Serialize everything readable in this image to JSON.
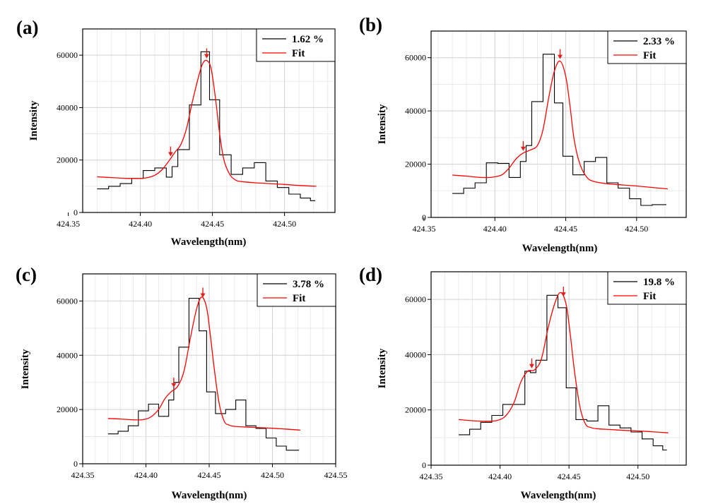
{
  "colors": {
    "data": "#000000",
    "fit": "#ff0000",
    "arrow": "#e0201a",
    "grid": "#d4d4d4",
    "frame": "#000000"
  },
  "chart_data": [
    {
      "panel": "(a)",
      "type": "line",
      "xlabel": "Wavelength(nm)",
      "ylabel": "Intensity",
      "xlim": [
        424.36,
        424.535
      ],
      "ylim": [
        0,
        70000
      ],
      "xticks": [
        "424.35",
        "424.40",
        "424.45",
        "424.50"
      ],
      "yticks": [
        "0",
        "20000",
        "40000",
        "60000"
      ],
      "grid": true,
      "legend_position": "top-right",
      "series": [
        {
          "name": "1.62 %",
          "style": "step",
          "x": [
            424.37,
            424.378,
            424.386,
            424.394,
            424.402,
            424.41,
            424.418,
            424.422,
            424.426,
            424.434,
            424.442,
            424.448,
            424.455,
            424.463,
            424.471,
            424.479,
            424.487,
            424.495,
            424.503,
            424.511,
            424.518,
            424.521
          ],
          "y": [
            9000,
            10000,
            11000,
            13000,
            16000,
            17000,
            13500,
            17500,
            24000,
            41000,
            61300,
            43000,
            22000,
            14500,
            17000,
            19000,
            12000,
            9500,
            7000,
            5500,
            4500,
            4300
          ]
        },
        {
          "name": "Fit",
          "style": "smooth",
          "x": [
            424.37,
            424.38,
            424.39,
            424.4,
            424.405,
            424.41,
            424.415,
            424.42,
            424.424,
            424.428,
            424.432,
            424.436,
            424.44,
            424.443,
            424.446,
            424.449,
            424.452,
            424.455,
            424.458,
            424.462,
            424.466,
            424.47,
            424.48,
            424.49,
            424.5,
            424.51,
            424.522
          ],
          "y": [
            13600,
            13300,
            13000,
            13000,
            13300,
            14200,
            16300,
            19800,
            23000,
            25800,
            32000,
            42000,
            51000,
            56500,
            58000,
            55000,
            44000,
            30000,
            20000,
            14500,
            12400,
            11800,
            11300,
            11000,
            10700,
            10300,
            10000
          ]
        }
      ],
      "arrows_x": [
        424.421,
        424.446
      ]
    },
    {
      "panel": "(b)",
      "type": "line",
      "xlabel": "Wavelength(nm)",
      "ylabel": "Intensity",
      "xlim": [
        424.355,
        424.535
      ],
      "ylim": [
        0,
        70000
      ],
      "xticks": [
        "424.35",
        "424.40",
        "424.45",
        "424.50"
      ],
      "yticks": [
        "0",
        "20000",
        "40000",
        "60000"
      ],
      "grid": true,
      "legend_position": "top-right",
      "series": [
        {
          "name": "2.33 %",
          "style": "step",
          "x": [
            424.37,
            424.378,
            424.386,
            424.394,
            424.402,
            424.41,
            424.418,
            424.422,
            424.426,
            424.434,
            424.442,
            424.448,
            424.455,
            424.463,
            424.471,
            424.479,
            424.487,
            424.495,
            424.503,
            424.511,
            424.518,
            424.521
          ],
          "y": [
            9000,
            11000,
            13000,
            20500,
            20300,
            15000,
            21000,
            27000,
            43500,
            61300,
            43000,
            23000,
            16000,
            21000,
            22500,
            13000,
            11000,
            7000,
            4500,
            4800,
            4800,
            4800
          ]
        },
        {
          "name": "Fit",
          "style": "smooth",
          "x": [
            424.37,
            424.38,
            424.39,
            424.398,
            424.405,
            424.41,
            424.415,
            424.42,
            424.425,
            424.43,
            424.434,
            424.438,
            424.442,
            424.446,
            424.45,
            424.453,
            424.456,
            424.46,
            424.465,
            424.47,
            424.48,
            424.49,
            424.5,
            424.51,
            424.522
          ],
          "y": [
            15900,
            15500,
            15000,
            15100,
            16000,
            18500,
            22000,
            24200,
            25300,
            27000,
            33000,
            45000,
            55000,
            58700,
            53000,
            42000,
            29000,
            20000,
            15000,
            13500,
            12600,
            12200,
            11800,
            11300,
            10700
          ]
        }
      ],
      "arrows_x": [
        424.42,
        424.446
      ]
    },
    {
      "panel": "(c)",
      "type": "line",
      "xlabel": "Wavelength(nm)",
      "ylabel": "Intensity",
      "xlim": [
        424.35,
        424.55
      ],
      "ylim": [
        0,
        70000
      ],
      "xticks": [
        "424.35",
        "424.40",
        "424.45",
        "424.50",
        "424.55"
      ],
      "yticks": [
        "0",
        "20000",
        "40000",
        "60000"
      ],
      "grid": true,
      "legend_position": "top-right",
      "series": [
        {
          "name": "3.78 %",
          "style": "step",
          "x": [
            424.37,
            424.378,
            424.386,
            424.394,
            424.402,
            424.41,
            424.418,
            424.422,
            424.426,
            424.434,
            424.442,
            424.448,
            424.455,
            424.463,
            424.471,
            424.479,
            424.487,
            424.495,
            424.503,
            424.511,
            424.518,
            424.521
          ],
          "y": [
            11000,
            12000,
            14000,
            19500,
            22000,
            17500,
            23500,
            30000,
            43000,
            61000,
            49000,
            26500,
            18500,
            20000,
            23500,
            14000,
            13000,
            9500,
            6500,
            5000,
            5000,
            5000
          ]
        },
        {
          "name": "Fit",
          "style": "smooth",
          "x": [
            424.37,
            424.38,
            424.39,
            424.398,
            424.404,
            424.41,
            424.415,
            424.42,
            424.425,
            424.43,
            424.435,
            424.44,
            424.444,
            424.448,
            424.451,
            424.454,
            424.458,
            424.462,
            424.466,
            424.47,
            424.48,
            424.49,
            424.5,
            424.51,
            424.522
          ],
          "y": [
            16700,
            16500,
            16200,
            16300,
            17300,
            20000,
            24000,
            26600,
            28500,
            34000,
            46000,
            57000,
            61500,
            57500,
            47000,
            35000,
            22000,
            15600,
            14200,
            13800,
            13500,
            13300,
            13100,
            12800,
            12400
          ]
        }
      ],
      "arrows_x": [
        424.422,
        424.445
      ]
    },
    {
      "panel": "(d)",
      "type": "line",
      "xlabel": "Wavelength(nm)",
      "ylabel": "Intensity",
      "xlim": [
        424.35,
        424.535
      ],
      "ylim": [
        0,
        70000
      ],
      "xticks": [
        "424.35",
        "424.40",
        "424.45",
        "424.50"
      ],
      "yticks": [
        "0",
        "20000",
        "40000",
        "60000"
      ],
      "grid": true,
      "legend_position": "top-right",
      "series": [
        {
          "name": "19.8 %",
          "style": "step",
          "x": [
            424.37,
            424.378,
            424.386,
            424.394,
            424.402,
            424.41,
            424.418,
            424.422,
            424.426,
            424.434,
            424.442,
            424.448,
            424.455,
            424.463,
            424.471,
            424.479,
            424.487,
            424.495,
            424.503,
            424.511,
            424.518,
            424.521
          ],
          "y": [
            11000,
            13000,
            15500,
            18000,
            22000,
            22000,
            34000,
            33500,
            38000,
            61500,
            57000,
            28000,
            16500,
            16000,
            21500,
            14500,
            13500,
            12000,
            9500,
            7000,
            5500,
            5500
          ]
        },
        {
          "name": "Fit",
          "style": "smooth",
          "x": [
            424.37,
            424.38,
            424.39,
            424.398,
            424.404,
            424.41,
            424.415,
            424.42,
            424.425,
            424.43,
            424.435,
            424.44,
            424.444,
            424.448,
            424.451,
            424.454,
            424.458,
            424.462,
            424.466,
            424.47,
            424.48,
            424.49,
            424.5,
            424.51,
            424.522
          ],
          "y": [
            16500,
            16100,
            15900,
            16200,
            17800,
            22500,
            30000,
            34000,
            34500,
            38500,
            50000,
            59000,
            62500,
            58000,
            47000,
            34000,
            21000,
            14800,
            13600,
            13200,
            12900,
            12600,
            12400,
            12100,
            11700
          ]
        }
      ],
      "arrows_x": [
        424.423,
        424.446
      ]
    }
  ]
}
